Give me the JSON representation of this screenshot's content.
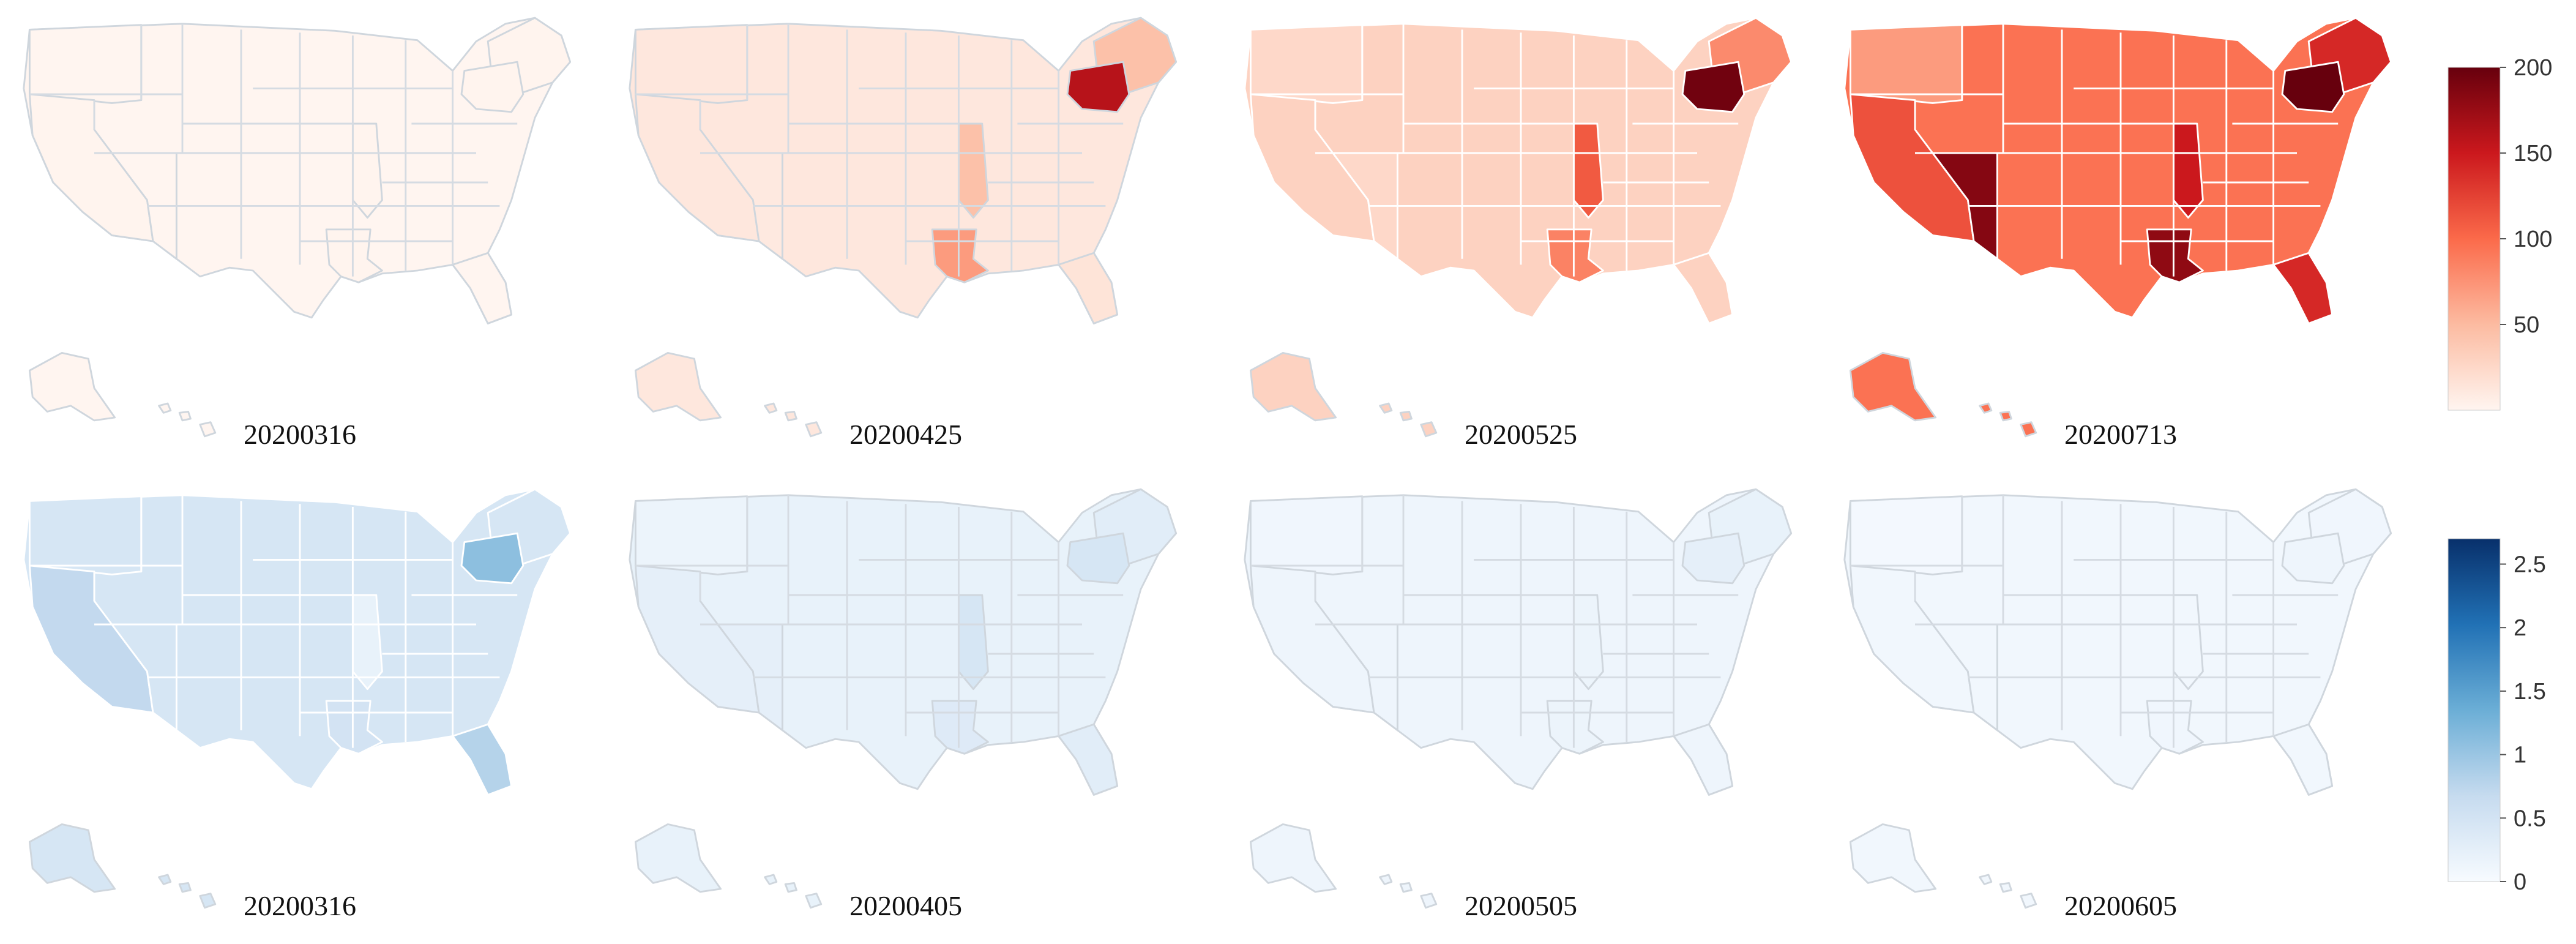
{
  "figure": {
    "rows": [
      {
        "colorscale": "reds",
        "colorbar": {
          "min": 0,
          "max": 200,
          "ticks": [
            "50",
            "100",
            "150",
            "200"
          ],
          "tick_values": [
            50,
            100,
            150,
            200
          ],
          "colors": [
            "#fff5f0",
            "#fcbba1",
            "#fb6a4a",
            "#cb181d",
            "#67000d"
          ]
        },
        "maps": [
          {
            "label": "20200316",
            "base": 0,
            "nw": 0,
            "ne": 1,
            "ca": 1,
            "la": 1,
            "fl": 0,
            "ny": 1,
            "az": 0,
            "il": 1
          },
          {
            "label": "20200425",
            "base": 12,
            "nw": 12,
            "ne": 45,
            "ca": 12,
            "la": 70,
            "fl": 15,
            "ny": 160,
            "az": 10,
            "il": 45
          },
          {
            "label": "20200525",
            "base": 30,
            "nw": 25,
            "ne": 80,
            "ca": 30,
            "la": 85,
            "fl": 30,
            "ny": 195,
            "az": 25,
            "il": 110
          },
          {
            "label": "20200713",
            "base": 95,
            "nw": 70,
            "ne": 140,
            "ca": 115,
            "la": 180,
            "fl": 140,
            "ny": 200,
            "az": 185,
            "il": 150
          }
        ]
      },
      {
        "colorscale": "blues",
        "colorbar": {
          "min": 0,
          "max": 2.7,
          "ticks": [
            "0",
            "0.5",
            "1",
            "1.5",
            "2",
            "2.5"
          ],
          "tick_values": [
            0,
            0.5,
            1,
            1.5,
            2,
            2.5
          ],
          "colors": [
            "#f7fbff",
            "#c6dbef",
            "#6baed6",
            "#2171b5",
            "#08306b"
          ]
        },
        "maps": [
          {
            "label": "20200316",
            "base": 0.45,
            "nw": 0.45,
            "ne": 0.45,
            "ca": 0.7,
            "la": 0.5,
            "fl": 0.8,
            "ny": 1.1,
            "az": 0.45,
            "il": 0.2
          },
          {
            "label": "20200405",
            "base": 0.2,
            "nw": 0.15,
            "ne": 0.3,
            "ca": 0.25,
            "la": 0.35,
            "fl": 0.3,
            "ny": 0.45,
            "az": 0.25,
            "il": 0.45
          },
          {
            "label": "20200505",
            "base": 0.12,
            "nw": 0.1,
            "ne": 0.2,
            "ca": 0.12,
            "la": 0.15,
            "fl": 0.12,
            "ny": 0.25,
            "az": 0.12,
            "il": 0.15
          },
          {
            "label": "20200605",
            "base": 0.08,
            "nw": 0.06,
            "ne": 0.1,
            "ca": 0.08,
            "la": 0.1,
            "fl": 0.08,
            "ny": 0.12,
            "az": 0.08,
            "il": 0.08
          }
        ]
      }
    ]
  }
}
